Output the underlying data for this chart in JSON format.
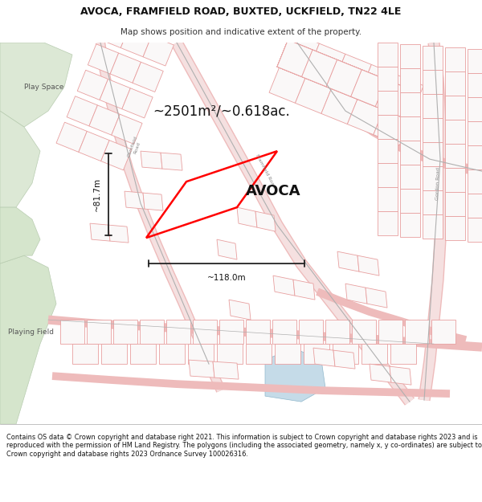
{
  "title": "AVOCA, FRAMFIELD ROAD, BUXTED, UCKFIELD, TN22 4LE",
  "subtitle": "Map shows position and indicative extent of the property.",
  "property_label": "AVOCA",
  "area_label": "~2501m²/~0.618ac.",
  "width_label": "~118.0m",
  "height_label": "~81.7m",
  "footer_text": "Contains OS data © Crown copyright and database right 2021. This information is subject to Crown copyright and database rights 2023 and is reproduced with the permission of HM Land Registry. The polygons (including the associated geometry, namely x, y co-ordinates) are subject to Crown copyright and database rights 2023 Ordnance Survey 100026316.",
  "map_bg": "#f8f6f4",
  "green1_color": "#dce8d5",
  "green2_color": "#d5e5cc",
  "blue_color": "#c5dbe8",
  "road_line_color": "#e8a8a8",
  "road_center_color": "#c8c8c8",
  "plot_line_color": "#e8a0a0",
  "property_color": "#ff0000",
  "text_color": "#111111",
  "gray_text": "#666666",
  "footer_bg": "#ffffff",
  "title_bg": "#ffffff"
}
